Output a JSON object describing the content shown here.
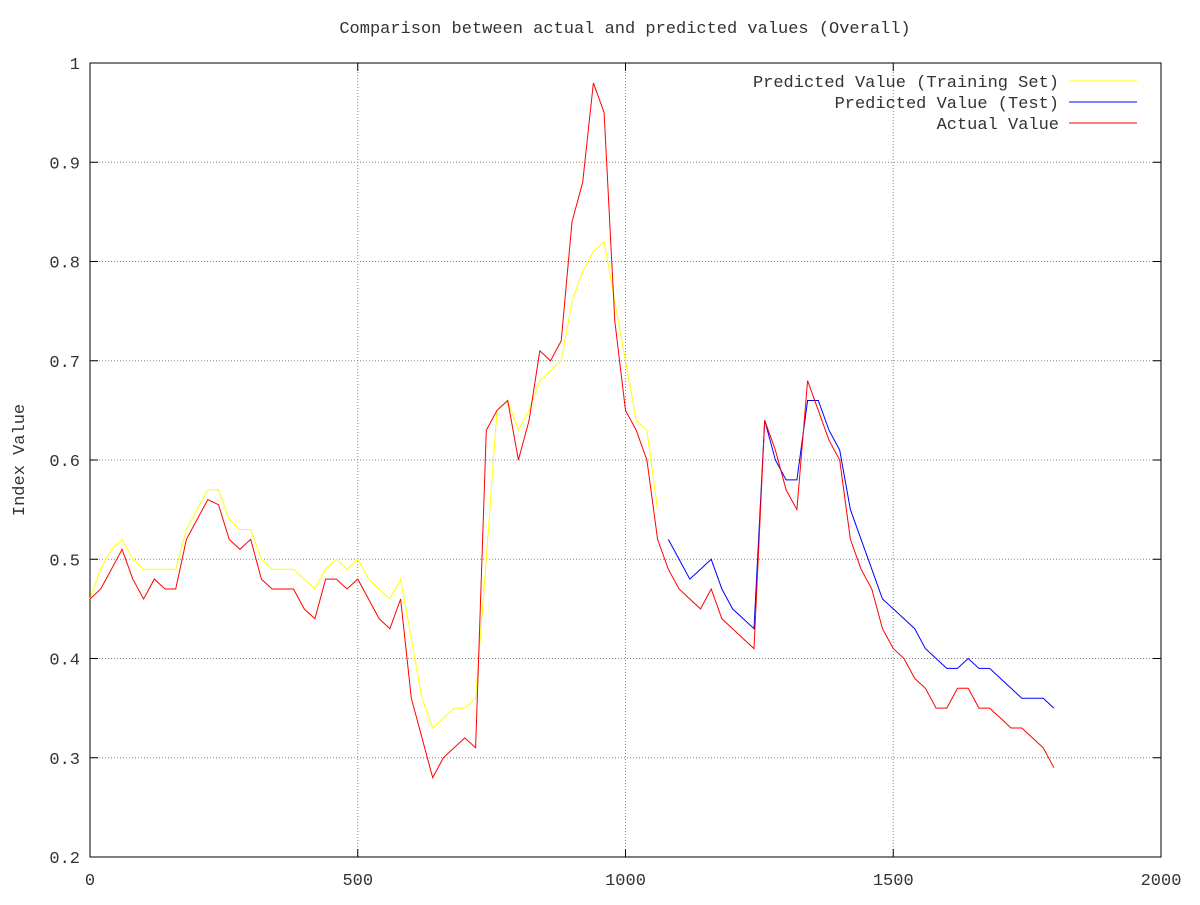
{
  "chart_data": {
    "type": "line",
    "title": "Comparison between actual and predicted values (Overall)",
    "y_label": "Index Value",
    "x": [
      0,
      20,
      40,
      60,
      80,
      100,
      120,
      140,
      160,
      180,
      200,
      220,
      240,
      260,
      280,
      300,
      320,
      340,
      360,
      380,
      400,
      420,
      440,
      460,
      480,
      500,
      520,
      540,
      560,
      580,
      600,
      620,
      640,
      660,
      680,
      700,
      720,
      740,
      760,
      780,
      800,
      820,
      840,
      860,
      880,
      900,
      920,
      940,
      960,
      980,
      1000,
      1020,
      1040,
      1060,
      1080,
      1100,
      1120,
      1140,
      1160,
      1180,
      1200,
      1220,
      1240,
      1260,
      1280,
      1300,
      1320,
      1340,
      1360,
      1380,
      1400,
      1420,
      1440,
      1460,
      1480,
      1500,
      1520,
      1540,
      1560,
      1580,
      1600,
      1620,
      1640,
      1660,
      1680,
      1700,
      1720,
      1740,
      1760,
      1780,
      1800
    ],
    "series": [
      {
        "name": "Predicted Value (Training Set)",
        "color": "#ffff00",
        "values": [
          0.46,
          0.49,
          0.51,
          0.52,
          0.5,
          0.49,
          0.49,
          0.49,
          0.49,
          0.53,
          0.55,
          0.57,
          0.57,
          0.54,
          0.53,
          0.53,
          0.5,
          0.49,
          0.49,
          0.49,
          0.48,
          0.47,
          0.49,
          0.5,
          0.49,
          0.5,
          0.48,
          0.47,
          0.46,
          0.48,
          0.42,
          0.36,
          0.33,
          0.34,
          0.35,
          0.35,
          0.36,
          0.5,
          0.65,
          0.66,
          0.63,
          0.65,
          0.68,
          0.69,
          0.7,
          0.76,
          0.79,
          0.81,
          0.82,
          0.76,
          0.7,
          0.64,
          0.63,
          0.55,
          null,
          null,
          null,
          null,
          null,
          null,
          null,
          null,
          null,
          null,
          null,
          null,
          null,
          null,
          null,
          null,
          null,
          null,
          null,
          null,
          null,
          null,
          null,
          null,
          null,
          null,
          null,
          null,
          null,
          null,
          null,
          null,
          null,
          null,
          null,
          null,
          null
        ]
      },
      {
        "name": "Predicted Value (Test)",
        "color": "#0000ff",
        "values": [
          null,
          null,
          null,
          null,
          null,
          null,
          null,
          null,
          null,
          null,
          null,
          null,
          null,
          null,
          null,
          null,
          null,
          null,
          null,
          null,
          null,
          null,
          null,
          null,
          null,
          null,
          null,
          null,
          null,
          null,
          null,
          null,
          null,
          null,
          null,
          null,
          null,
          null,
          null,
          null,
          null,
          null,
          null,
          null,
          null,
          null,
          null,
          null,
          null,
          null,
          null,
          null,
          null,
          null,
          0.52,
          0.5,
          0.48,
          0.49,
          0.5,
          0.47,
          0.45,
          0.44,
          0.43,
          0.64,
          0.6,
          0.58,
          0.58,
          0.66,
          0.66,
          0.63,
          0.61,
          0.55,
          0.52,
          0.49,
          0.46,
          0.45,
          0.44,
          0.43,
          0.41,
          0.4,
          0.39,
          0.39,
          0.4,
          0.39,
          0.39,
          0.38,
          0.37,
          0.36,
          0.36,
          0.36,
          0.35
        ]
      },
      {
        "name": "Actual Value",
        "color": "#ff0000",
        "values": [
          0.46,
          0.47,
          0.49,
          0.51,
          0.48,
          0.46,
          0.48,
          0.47,
          0.47,
          0.52,
          0.54,
          0.56,
          0.555,
          0.52,
          0.51,
          0.52,
          0.48,
          0.47,
          0.47,
          0.47,
          0.45,
          0.44,
          0.48,
          0.48,
          0.47,
          0.48,
          0.46,
          0.44,
          0.43,
          0.46,
          0.36,
          0.32,
          0.28,
          0.3,
          0.31,
          0.32,
          0.31,
          0.63,
          0.65,
          0.66,
          0.6,
          0.64,
          0.71,
          0.7,
          0.72,
          0.84,
          0.88,
          0.98,
          0.95,
          0.74,
          0.65,
          0.63,
          0.6,
          0.52,
          0.49,
          0.47,
          0.46,
          0.45,
          0.47,
          0.44,
          0.43,
          0.42,
          0.41,
          0.64,
          0.61,
          0.57,
          0.55,
          0.68,
          0.65,
          0.62,
          0.6,
          0.52,
          0.49,
          0.47,
          0.43,
          0.41,
          0.4,
          0.38,
          0.37,
          0.35,
          0.35,
          0.37,
          0.37,
          0.35,
          0.35,
          0.34,
          0.33,
          0.33,
          0.32,
          0.31,
          0.29
        ]
      }
    ],
    "xlim": [
      0,
      2000
    ],
    "xticks": [
      0,
      500,
      1000,
      1500,
      2000
    ],
    "ylim": [
      0.2,
      1
    ],
    "yticks": [
      0.2,
      0.3,
      0.4,
      0.5,
      0.6,
      0.7,
      0.8,
      0.9,
      1
    ],
    "grid": true,
    "legend": "top-right"
  }
}
